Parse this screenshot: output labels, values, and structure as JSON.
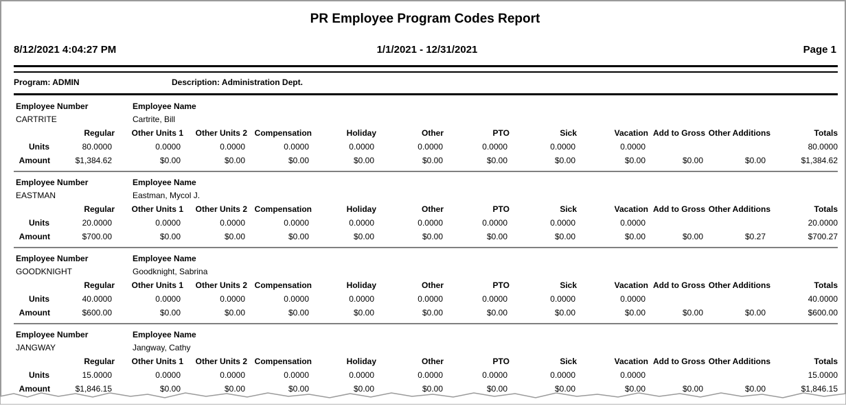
{
  "header": {
    "title": "PR Employee Program Codes Report",
    "date_time": "8/12/2021  4:04:27 PM",
    "date_range": "1/1/2021 - 12/31/2021",
    "page": "Page 1"
  },
  "program": {
    "program": "Program: ADMIN",
    "description": "Description: Administration Dept."
  },
  "labels": {
    "employee_number": "Employee Number",
    "employee_name": "Employee Name",
    "units": "Units",
    "amount": "Amount"
  },
  "columns": [
    "Regular",
    "Other Units 1",
    "Other Units 2",
    "Compensation",
    "Holiday",
    "Other",
    "PTO",
    "Sick",
    "Vacation",
    "Add to Gross",
    "Other Additions",
    "Totals"
  ],
  "employees": [
    {
      "number": "CARTRITE",
      "name": "Cartrite, Bill",
      "units": [
        "80.0000",
        "0.0000",
        "0.0000",
        "0.0000",
        "0.0000",
        "0.0000",
        "0.0000",
        "0.0000",
        "0.0000",
        null,
        null,
        "80.0000"
      ],
      "amounts": [
        "$1,384.62",
        "$0.00",
        "$0.00",
        "$0.00",
        "$0.00",
        "$0.00",
        "$0.00",
        "$0.00",
        "$0.00",
        "$0.00",
        "$0.00",
        "$1,384.62"
      ]
    },
    {
      "number": "EASTMAN",
      "name": "Eastman, Mycol J.",
      "units": [
        "20.0000",
        "0.0000",
        "0.0000",
        "0.0000",
        "0.0000",
        "0.0000",
        "0.0000",
        "0.0000",
        "0.0000",
        null,
        null,
        "20.0000"
      ],
      "amounts": [
        "$700.00",
        "$0.00",
        "$0.00",
        "$0.00",
        "$0.00",
        "$0.00",
        "$0.00",
        "$0.00",
        "$0.00",
        "$0.00",
        "$0.27",
        "$700.27"
      ]
    },
    {
      "number": "GOODKNIGHT",
      "name": "Goodknight, Sabrina",
      "units": [
        "40.0000",
        "0.0000",
        "0.0000",
        "0.0000",
        "0.0000",
        "0.0000",
        "0.0000",
        "0.0000",
        "0.0000",
        null,
        null,
        "40.0000"
      ],
      "amounts": [
        "$600.00",
        "$0.00",
        "$0.00",
        "$0.00",
        "$0.00",
        "$0.00",
        "$0.00",
        "$0.00",
        "$0.00",
        "$0.00",
        "$0.00",
        "$600.00"
      ]
    },
    {
      "number": "JANGWAY",
      "name": "Jangway, Cathy",
      "units": [
        "15.0000",
        "0.0000",
        "0.0000",
        "0.0000",
        "0.0000",
        "0.0000",
        "0.0000",
        "0.0000",
        "0.0000",
        null,
        null,
        "15.0000"
      ],
      "amounts": [
        "$1,846.15",
        "$0.00",
        "$0.00",
        "$0.00",
        "$0.00",
        "$0.00",
        "$0.00",
        "$0.00",
        "$0.00",
        "$0.00",
        "$0.00",
        "$1,846.15"
      ]
    }
  ]
}
